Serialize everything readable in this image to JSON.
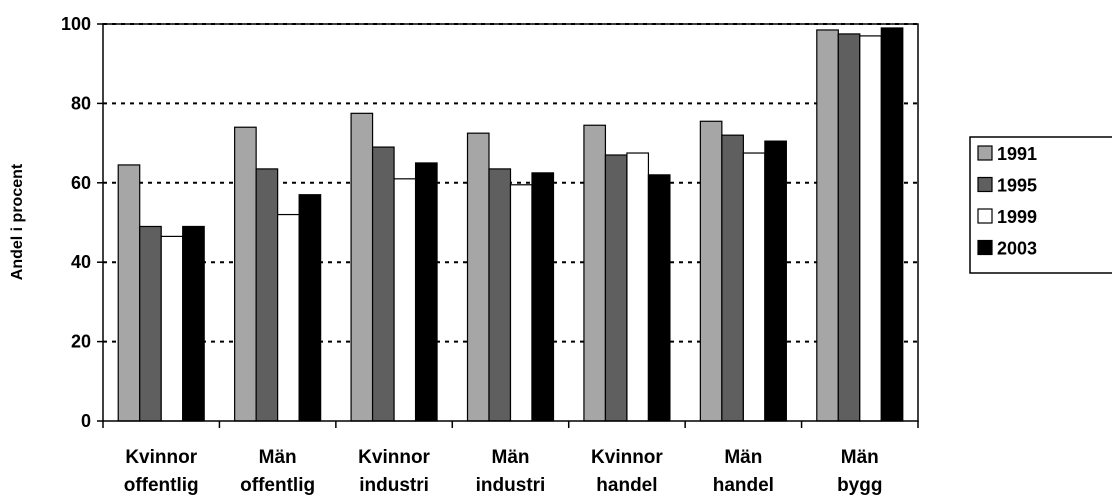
{
  "chart_data": {
    "type": "bar",
    "ylabel": "Andel i procent",
    "xlabel": "",
    "ylim": [
      0,
      100
    ],
    "yticks": [
      0,
      20,
      40,
      60,
      80,
      100
    ],
    "grid": "dotted horizontal",
    "legend_position": "right",
    "categories": [
      [
        "Kvinnor",
        "offentlig"
      ],
      [
        "Män",
        "offentlig"
      ],
      [
        "Kvinnor",
        "industri"
      ],
      [
        "Män",
        "industri"
      ],
      [
        "Kvinnor",
        "handel"
      ],
      [
        "Män",
        "handel"
      ],
      [
        "Män",
        "bygg"
      ]
    ],
    "series": [
      {
        "name": "1991",
        "color": "#a6a6a6",
        "values": [
          64.5,
          74,
          77.5,
          72.5,
          74.5,
          75.5,
          98.5
        ]
      },
      {
        "name": "1995",
        "color": "#5f5f5f",
        "values": [
          49,
          63.5,
          69,
          63.5,
          67,
          72,
          97.5
        ]
      },
      {
        "name": "1999",
        "color": "#ffffff",
        "values": [
          46.5,
          52,
          61,
          59.5,
          67.5,
          67.5,
          97
        ]
      },
      {
        "name": "2003",
        "color": "#000000",
        "values": [
          49,
          57,
          65,
          62.5,
          62,
          70.5,
          99
        ]
      }
    ]
  }
}
